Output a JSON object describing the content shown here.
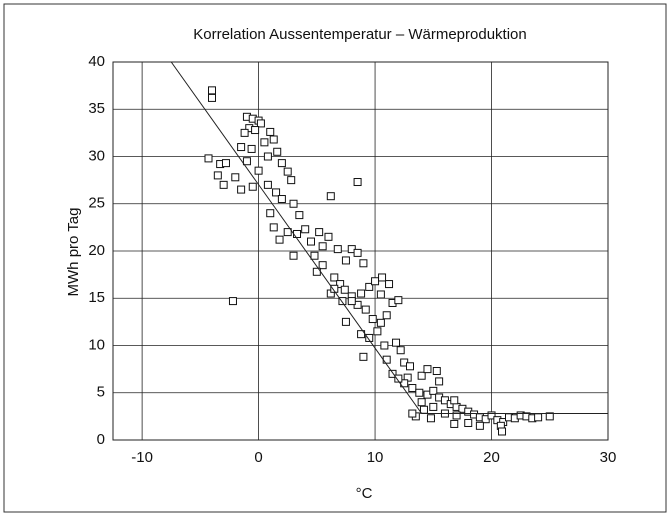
{
  "chart_data": {
    "type": "scatter",
    "title": "Korrelation Aussentemperatur – Wärmeproduktion",
    "xlabel": "°C",
    "ylabel": "MWh pro Tag",
    "xlim": [
      -12.5,
      30
    ],
    "ylim": [
      0,
      40
    ],
    "xticks": [
      -10,
      0,
      10,
      20,
      30
    ],
    "yticks": [
      0,
      5,
      10,
      15,
      20,
      25,
      30,
      35,
      40
    ],
    "grid": true,
    "series": [
      {
        "marker": "square",
        "color": "#111111",
        "x": [
          -4,
          -4,
          -4.3,
          -3.3,
          -2.8,
          -3.5,
          -3,
          -2.2,
          8.5,
          6.2,
          -1,
          -0.5,
          0,
          0.2,
          -0.8,
          -1.2,
          -0.3,
          0.5,
          1,
          1.3,
          -1.5,
          -0.6,
          0.8,
          1.6,
          -1,
          0,
          2,
          2.5,
          -2,
          -1.5,
          -0.5,
          0.8,
          1.5,
          2.8,
          3,
          2,
          1,
          3.5,
          1.3,
          2.5,
          3.3,
          4,
          4.5,
          1.8,
          5.2,
          6,
          5.5,
          6.8,
          4.8,
          5.5,
          5,
          7.5,
          8,
          8.5,
          9,
          6.5,
          7,
          6.2,
          7.4,
          8,
          8.8,
          9.5,
          10,
          10.5,
          7.2,
          8.5,
          9.2,
          9.8,
          10.5,
          11,
          11.5,
          12,
          10.2,
          9.5,
          10.8,
          11.8,
          12.2,
          11,
          12.5,
          13,
          11.5,
          12.8,
          14,
          14.5,
          15.3,
          13.2,
          13.8,
          14.5,
          15,
          15.5,
          16,
          16.5,
          17,
          17.5,
          14,
          14.2,
          15,
          13.5,
          14.8,
          16,
          17,
          18,
          18.5,
          19,
          19.5,
          20,
          20.5,
          21,
          21.5,
          22,
          22.5,
          23,
          23.5,
          24,
          25,
          20.8,
          20.9,
          19,
          18,
          16.8,
          13.2,
          12.5,
          6.5,
          3,
          7.5,
          8.8,
          12,
          11.2,
          10.6,
          9,
          8,
          15.5,
          16.8
        ],
        "values": [
          37,
          36.2,
          29.8,
          29.2,
          29.3,
          28,
          27,
          14.7,
          27.3,
          25.8,
          34.2,
          34,
          33.8,
          33.5,
          33,
          32.5,
          32.8,
          31.5,
          32.6,
          31.8,
          31,
          30.8,
          30,
          30.5,
          29.5,
          28.5,
          29.3,
          28.4,
          27.8,
          26.5,
          26.8,
          27,
          26.2,
          27.5,
          25,
          25.5,
          24,
          23.8,
          22.5,
          22,
          21.8,
          22.3,
          21,
          21.2,
          22,
          21.5,
          20.5,
          20.2,
          19.5,
          18.5,
          17.8,
          19,
          20.2,
          19.8,
          18.7,
          17.2,
          16.5,
          15.5,
          15.9,
          15.2,
          15.5,
          16.2,
          16.8,
          15.4,
          14.7,
          14.3,
          13.8,
          12.8,
          12.4,
          13.2,
          14.5,
          14.8,
          11.5,
          10.8,
          10,
          10.3,
          9.5,
          8.5,
          8.2,
          7.8,
          7,
          6.6,
          6.8,
          7.5,
          7.3,
          5.5,
          5,
          4.8,
          5.2,
          4.5,
          4.2,
          3.8,
          3.5,
          3.3,
          4,
          3.2,
          3.5,
          2.5,
          2.3,
          2.8,
          2.6,
          3,
          2.7,
          2.4,
          2.2,
          2.6,
          2.1,
          1.9,
          2.4,
          2.3,
          2.6,
          2.5,
          2.3,
          2.4,
          2.5,
          1.5,
          0.9,
          1.5,
          1.8,
          1.7,
          2.8,
          6,
          16,
          19.5,
          12.5,
          11.2,
          6.5,
          16.5,
          17.2,
          8.8,
          14.7,
          6.2,
          4.2
        ]
      }
    ],
    "fit_line": {
      "color": "#222222",
      "x": [
        -7.5,
        14,
        30
      ],
      "values": [
        40,
        2.8,
        2.8
      ]
    }
  }
}
